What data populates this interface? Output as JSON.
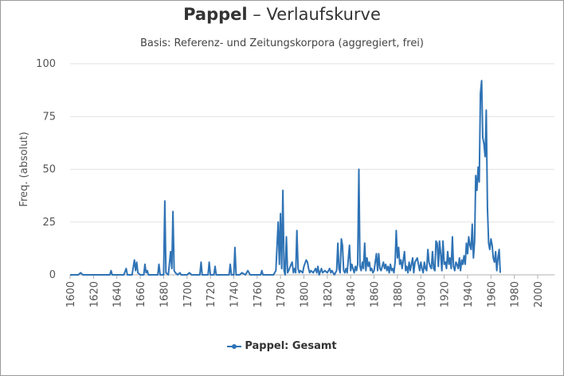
{
  "chart_data": {
    "type": "line",
    "title_bold": "Pappel",
    "title_rest": " – Verlaufskurve",
    "subtitle": "Basis: Referenz- und Zeitungskorpora (aggregiert, frei)",
    "xlabel": "",
    "ylabel": "Freq. (absolut)",
    "xlim": [
      1600,
      2018
    ],
    "ylim": [
      0,
      100
    ],
    "x_ticks": [
      1600,
      1620,
      1640,
      1660,
      1680,
      1700,
      1720,
      1740,
      1760,
      1780,
      1800,
      1820,
      1840,
      1860,
      1880,
      1900,
      1920,
      1940,
      1960,
      1980,
      2000
    ],
    "y_ticks": [
      0,
      25,
      50,
      75,
      100
    ],
    "grid": "horizontal",
    "legend_position": "bottom",
    "series": [
      {
        "name": "Pappel: Gesamt",
        "color": "#2f73b5",
        "points": [
          [
            1600,
            0
          ],
          [
            1607,
            0
          ],
          [
            1609,
            1
          ],
          [
            1611,
            0
          ],
          [
            1634,
            0
          ],
          [
            1635,
            2
          ],
          [
            1636,
            0
          ],
          [
            1646,
            0
          ],
          [
            1648,
            3
          ],
          [
            1649,
            0
          ],
          [
            1653,
            0
          ],
          [
            1655,
            7
          ],
          [
            1656,
            2
          ],
          [
            1657,
            6
          ],
          [
            1658,
            1
          ],
          [
            1660,
            0
          ],
          [
            1663,
            0
          ],
          [
            1664,
            5
          ],
          [
            1665,
            1
          ],
          [
            1666,
            2
          ],
          [
            1667,
            0
          ],
          [
            1675,
            0
          ],
          [
            1676,
            5
          ],
          [
            1677,
            0
          ],
          [
            1680,
            0
          ],
          [
            1681,
            35
          ],
          [
            1682,
            1
          ],
          [
            1684,
            0
          ],
          [
            1686,
            11
          ],
          [
            1687,
            3
          ],
          [
            1688,
            30
          ],
          [
            1689,
            2
          ],
          [
            1690,
            1
          ],
          [
            1692,
            0
          ],
          [
            1694,
            1
          ],
          [
            1695,
            0
          ],
          [
            1700,
            0
          ],
          [
            1702,
            1
          ],
          [
            1704,
            0
          ],
          [
            1711,
            0
          ],
          [
            1712,
            6
          ],
          [
            1713,
            0
          ],
          [
            1718,
            0
          ],
          [
            1719,
            6
          ],
          [
            1720,
            0
          ],
          [
            1723,
            0
          ],
          [
            1724,
            4
          ],
          [
            1725,
            0
          ],
          [
            1736,
            0
          ],
          [
            1737,
            5
          ],
          [
            1738,
            0
          ],
          [
            1740,
            0
          ],
          [
            1741,
            13
          ],
          [
            1742,
            0
          ],
          [
            1745,
            0
          ],
          [
            1747,
            1
          ],
          [
            1750,
            0
          ],
          [
            1752,
            2
          ],
          [
            1754,
            0
          ],
          [
            1763,
            0
          ],
          [
            1764,
            2
          ],
          [
            1765,
            0
          ],
          [
            1774,
            0
          ],
          [
            1776,
            2
          ],
          [
            1778,
            25
          ],
          [
            1779,
            5
          ],
          [
            1780,
            29
          ],
          [
            1781,
            3
          ],
          [
            1782,
            40
          ],
          [
            1783,
            2
          ],
          [
            1784,
            0
          ],
          [
            1785,
            18
          ],
          [
            1786,
            1
          ],
          [
            1787,
            2
          ],
          [
            1789,
            5
          ],
          [
            1790,
            6
          ],
          [
            1791,
            1
          ],
          [
            1792,
            3
          ],
          [
            1793,
            1
          ],
          [
            1794,
            21
          ],
          [
            1795,
            3
          ],
          [
            1796,
            1
          ],
          [
            1797,
            2
          ],
          [
            1799,
            1
          ],
          [
            1800,
            4
          ],
          [
            1802,
            7
          ],
          [
            1803,
            6
          ],
          [
            1804,
            3
          ],
          [
            1805,
            1
          ],
          [
            1806,
            2
          ],
          [
            1808,
            1
          ],
          [
            1810,
            3
          ],
          [
            1811,
            1
          ],
          [
            1812,
            4
          ],
          [
            1813,
            0
          ],
          [
            1815,
            3
          ],
          [
            1816,
            1
          ],
          [
            1818,
            2
          ],
          [
            1820,
            1
          ],
          [
            1822,
            3
          ],
          [
            1823,
            1
          ],
          [
            1824,
            2
          ],
          [
            1826,
            0
          ],
          [
            1828,
            2
          ],
          [
            1829,
            15
          ],
          [
            1830,
            3
          ],
          [
            1831,
            1
          ],
          [
            1832,
            17
          ],
          [
            1833,
            14
          ],
          [
            1834,
            2
          ],
          [
            1835,
            1
          ],
          [
            1836,
            3
          ],
          [
            1837,
            1
          ],
          [
            1839,
            14
          ],
          [
            1840,
            2
          ],
          [
            1841,
            5
          ],
          [
            1842,
            3
          ],
          [
            1843,
            1
          ],
          [
            1844,
            4
          ],
          [
            1845,
            2
          ],
          [
            1846,
            5
          ],
          [
            1847,
            50
          ],
          [
            1848,
            4
          ],
          [
            1849,
            2
          ],
          [
            1850,
            6
          ],
          [
            1851,
            3
          ],
          [
            1852,
            15
          ],
          [
            1853,
            2
          ],
          [
            1854,
            8
          ],
          [
            1855,
            4
          ],
          [
            1856,
            6
          ],
          [
            1857,
            2
          ],
          [
            1858,
            3
          ],
          [
            1859,
            1
          ],
          [
            1860,
            2
          ],
          [
            1862,
            10
          ],
          [
            1863,
            2
          ],
          [
            1864,
            10
          ],
          [
            1865,
            3
          ],
          [
            1866,
            2
          ],
          [
            1868,
            6
          ],
          [
            1869,
            3
          ],
          [
            1870,
            5
          ],
          [
            1871,
            2
          ],
          [
            1872,
            4
          ],
          [
            1873,
            1
          ],
          [
            1874,
            5
          ],
          [
            1875,
            2
          ],
          [
            1876,
            3
          ],
          [
            1877,
            1
          ],
          [
            1878,
            6
          ],
          [
            1879,
            21
          ],
          [
            1880,
            8
          ],
          [
            1881,
            13
          ],
          [
            1882,
            5
          ],
          [
            1883,
            7
          ],
          [
            1884,
            3
          ],
          [
            1886,
            11
          ],
          [
            1887,
            2
          ],
          [
            1888,
            4
          ],
          [
            1889,
            1
          ],
          [
            1890,
            6
          ],
          [
            1891,
            2
          ],
          [
            1893,
            8
          ],
          [
            1894,
            1
          ],
          [
            1895,
            6
          ],
          [
            1897,
            8
          ],
          [
            1898,
            5
          ],
          [
            1899,
            2
          ],
          [
            1900,
            6
          ],
          [
            1901,
            3
          ],
          [
            1902,
            1
          ],
          [
            1903,
            6
          ],
          [
            1904,
            3
          ],
          [
            1905,
            2
          ],
          [
            1906,
            12
          ],
          [
            1907,
            6
          ],
          [
            1908,
            4
          ],
          [
            1909,
            3
          ],
          [
            1910,
            11
          ],
          [
            1911,
            3
          ],
          [
            1912,
            2
          ],
          [
            1913,
            16
          ],
          [
            1914,
            15
          ],
          [
            1915,
            4
          ],
          [
            1916,
            16
          ],
          [
            1917,
            10
          ],
          [
            1918,
            2
          ],
          [
            1919,
            16
          ],
          [
            1920,
            5
          ],
          [
            1921,
            6
          ],
          [
            1922,
            3
          ],
          [
            1923,
            11
          ],
          [
            1924,
            5
          ],
          [
            1925,
            8
          ],
          [
            1926,
            3
          ],
          [
            1927,
            18
          ],
          [
            1928,
            4
          ],
          [
            1929,
            2
          ],
          [
            1930,
            6
          ],
          [
            1931,
            5
          ],
          [
            1932,
            3
          ],
          [
            1933,
            8
          ],
          [
            1934,
            2
          ],
          [
            1935,
            7
          ],
          [
            1936,
            5
          ],
          [
            1937,
            9
          ],
          [
            1938,
            5
          ],
          [
            1939,
            15
          ],
          [
            1940,
            10
          ],
          [
            1941,
            18
          ],
          [
            1942,
            14
          ],
          [
            1943,
            12
          ],
          [
            1944,
            24
          ],
          [
            1945,
            8
          ],
          [
            1946,
            16
          ],
          [
            1947,
            47
          ],
          [
            1948,
            40
          ],
          [
            1949,
            51
          ],
          [
            1950,
            44
          ],
          [
            1951,
            86
          ],
          [
            1952,
            92
          ],
          [
            1953,
            65
          ],
          [
            1954,
            62
          ],
          [
            1955,
            56
          ],
          [
            1956,
            78
          ],
          [
            1957,
            32
          ],
          [
            1958,
            15
          ],
          [
            1959,
            12
          ],
          [
            1960,
            17
          ],
          [
            1961,
            14
          ],
          [
            1962,
            8
          ],
          [
            1963,
            6
          ],
          [
            1964,
            11
          ],
          [
            1965,
            2
          ],
          [
            1966,
            8
          ],
          [
            1967,
            12
          ],
          [
            1968,
            1
          ]
        ]
      }
    ]
  }
}
